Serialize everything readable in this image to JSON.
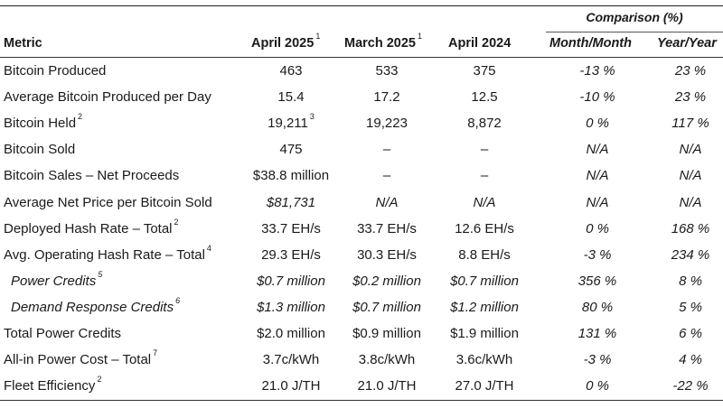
{
  "header": {
    "comparison_title": "Comparison (%)",
    "metric": "Metric",
    "april_2025": "April 2025",
    "april_2025_note": "1",
    "march_2025": "March 2025",
    "march_2025_note": "1",
    "april_2024": "April 2024",
    "month_month": "Month/Month",
    "year_year": "Year/Year"
  },
  "rows": [
    {
      "metric": "Bitcoin Produced",
      "note": "",
      "indent": false,
      "italic": false,
      "apr25": "463",
      "apr25_note": "",
      "mar25": "533",
      "apr24": "375",
      "mom": "-13 %",
      "yoy": "23 %"
    },
    {
      "metric": "Average Bitcoin Produced per Day",
      "note": "",
      "indent": false,
      "italic": false,
      "apr25": "15.4",
      "apr25_note": "",
      "mar25": "17.2",
      "apr24": "12.5",
      "mom": "-10 %",
      "yoy": "23 %"
    },
    {
      "metric": "Bitcoin Held",
      "note": "2",
      "indent": false,
      "italic": false,
      "apr25": "19,211",
      "apr25_note": "3",
      "mar25": "19,223",
      "apr24": "8,872",
      "mom": "0 %",
      "yoy": "117 %"
    },
    {
      "metric": "Bitcoin Sold",
      "note": "",
      "indent": false,
      "italic": false,
      "apr25": "475",
      "apr25_note": "",
      "mar25": "–",
      "apr24": "–",
      "mom": "N/A",
      "yoy": "N/A"
    },
    {
      "metric": "Bitcoin Sales – Net Proceeds",
      "note": "",
      "indent": false,
      "italic": false,
      "apr25": "$38.8 million",
      "apr25_note": "",
      "mar25": "–",
      "apr24": "–",
      "mom": "N/A",
      "yoy": "N/A"
    },
    {
      "metric": "Average Net Price per Bitcoin Sold",
      "note": "",
      "indent": false,
      "italic": true,
      "apr25": "$81,731",
      "apr25_note": "",
      "mar25": "N/A",
      "apr24": "N/A",
      "mom": "N/A",
      "yoy": "N/A",
      "metric_plain": true
    },
    {
      "metric": "Deployed Hash Rate – Total",
      "note": "2",
      "indent": false,
      "italic": false,
      "apr25": "33.7 EH/s",
      "apr25_note": "",
      "mar25": "33.7 EH/s",
      "apr24": "12.6 EH/s",
      "mom": "0 %",
      "yoy": "168 %"
    },
    {
      "metric": "Avg. Operating Hash Rate – Total",
      "note": "4",
      "indent": false,
      "italic": false,
      "apr25": "29.3 EH/s",
      "apr25_note": "",
      "mar25": "30.3 EH/s",
      "apr24": "8.8 EH/s",
      "mom": "-3 %",
      "yoy": "234 %"
    },
    {
      "metric": "Power Credits",
      "note": "5",
      "indent": true,
      "italic": true,
      "apr25": "$0.7 million",
      "apr25_note": "",
      "mar25": "$0.2 million",
      "apr24": "$0.7 million",
      "mom": "356 %",
      "yoy": "8 %"
    },
    {
      "metric": "Demand Response Credits",
      "note": "6",
      "indent": true,
      "italic": true,
      "apr25": "$1.3 million",
      "apr25_note": "",
      "mar25": "$0.7 million",
      "apr24": "$1.2 million",
      "mom": "80 %",
      "yoy": "5 %"
    },
    {
      "metric": "Total Power Credits",
      "note": "",
      "indent": false,
      "italic": false,
      "apr25": "$2.0 million",
      "apr25_note": "",
      "mar25": "$0.9 million",
      "apr24": "$1.9 million",
      "mom": "131 %",
      "yoy": "6 %"
    },
    {
      "metric": "All-in Power Cost – Total",
      "note": "7",
      "indent": false,
      "italic": false,
      "apr25": "3.7c/kWh",
      "apr25_note": "",
      "mar25": "3.8c/kWh",
      "apr24": "3.6c/kWh",
      "mom": "-3 %",
      "yoy": "4 %"
    },
    {
      "metric": "Fleet Efficiency",
      "note": "2",
      "indent": false,
      "italic": false,
      "apr25": "21.0 J/TH",
      "apr25_note": "",
      "mar25": "21.0 J/TH",
      "apr24": "27.0 J/TH",
      "mom": "0 %",
      "yoy": "-22 %"
    }
  ]
}
